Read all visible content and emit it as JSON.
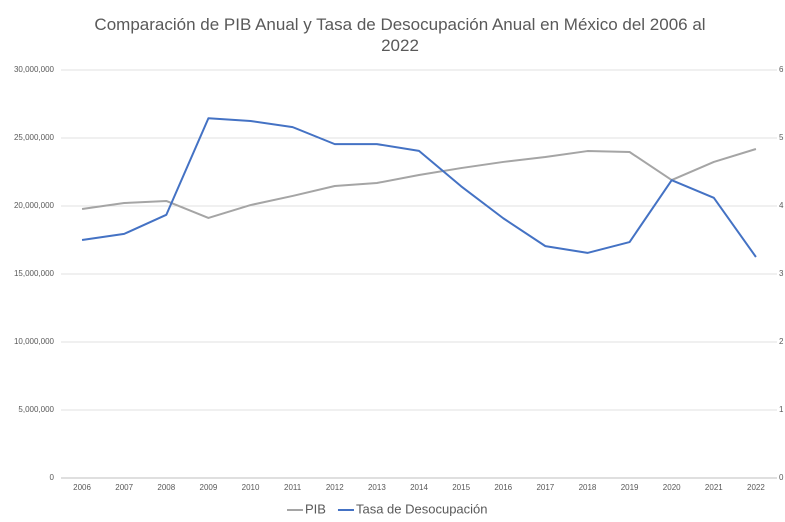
{
  "chart_data": {
    "type": "line",
    "title": "Comparación de PIB Anual y Tasa de Desocupación Anual en México del 2006 al 2022",
    "categories": [
      "2006",
      "2007",
      "2008",
      "2009",
      "2010",
      "2011",
      "2012",
      "2013",
      "2014",
      "2015",
      "2016",
      "2017",
      "2018",
      "2019",
      "2020",
      "2021",
      "2022"
    ],
    "series": [
      {
        "name": "PIB",
        "color": "#a5a5a5",
        "values": [
          19780000,
          20220000,
          20370000,
          19120000,
          20070000,
          20740000,
          21470000,
          21690000,
          22280000,
          22790000,
          23240000,
          23600000,
          24040000,
          23970000,
          21910000,
          23240000,
          24190000
        ]
      },
      {
        "name": "Tasa de Desocupación",
        "color": "#4472c4",
        "axis": "y2",
        "values": [
          3.5,
          3.59,
          3.87,
          5.29,
          5.25,
          5.16,
          4.91,
          4.91,
          4.81,
          4.29,
          3.82,
          3.41,
          3.31,
          3.47,
          4.38,
          4.12,
          3.25
        ]
      }
    ],
    "ylim": [
      0,
      30000000
    ],
    "yticks": [
      0,
      {
        "value": 5000000,
        "label": "5,000,000"
      },
      {
        "value": 10000000,
        "label": "10,000,000"
      },
      {
        "value": 15000000,
        "label": "15,000,000"
      },
      {
        "value": 20000000,
        "label": "20,000,000"
      },
      {
        "value": 25000000,
        "label": "25,000,000"
      },
      {
        "value": 30000000,
        "label": "30,000,000"
      }
    ],
    "y2lim": [
      0,
      6
    ],
    "y2ticks": [
      0,
      1,
      2,
      3,
      4,
      5,
      6
    ],
    "grid": true,
    "legend": "bottom"
  }
}
